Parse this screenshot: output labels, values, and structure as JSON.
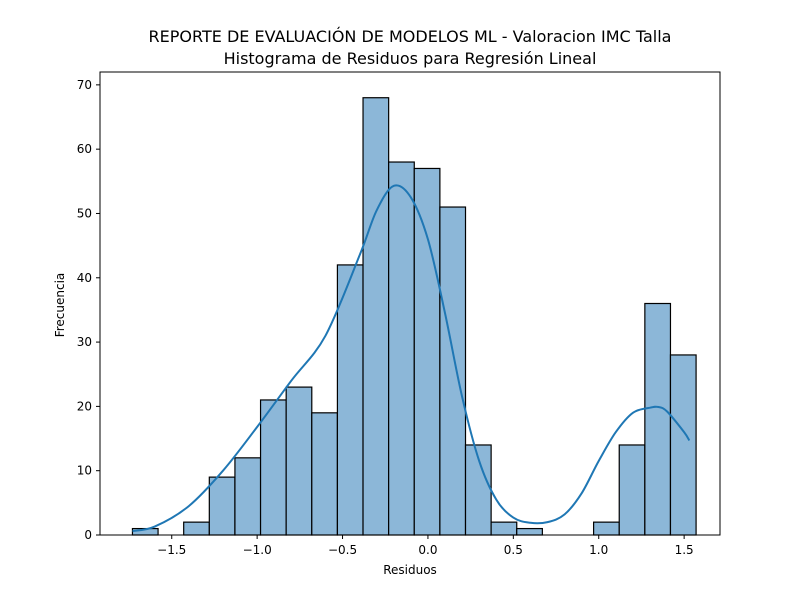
{
  "chart_data": {
    "type": "bar",
    "title": "REPORTE DE EVALUACIÓN DE MODELOS ML - Valoracion IMC Talla",
    "subtitle": "Histograma de Residuos para Regresión Lineal",
    "xlabel": "Residuos",
    "ylabel": "Frecuencia",
    "xlim": [
      -1.92,
      1.71
    ],
    "ylim": [
      0,
      72
    ],
    "xticks": [
      -1.5,
      -1.0,
      -0.5,
      0.0,
      0.5,
      1.0,
      1.5
    ],
    "xtick_labels": [
      "−1.5",
      "−1.0",
      "−0.5",
      "0.0",
      "0.5",
      "1.0",
      "1.5"
    ],
    "yticks": [
      0,
      10,
      20,
      30,
      40,
      50,
      60,
      70
    ],
    "ytick_labels": [
      "0",
      "10",
      "20",
      "30",
      "40",
      "50",
      "60",
      "70"
    ],
    "grid": false,
    "bin_edges": [
      -1.73,
      -1.58,
      -1.43,
      -1.28,
      -1.13,
      -0.98,
      -0.83,
      -0.68,
      -0.53,
      -0.38,
      -0.23,
      -0.08,
      0.07,
      0.22,
      0.37,
      0.52,
      0.67,
      0.82,
      0.97,
      1.12,
      1.27,
      1.42,
      1.57
    ],
    "counts": [
      1,
      0,
      2,
      9,
      12,
      21,
      23,
      19,
      42,
      68,
      58,
      57,
      51,
      14,
      2,
      1,
      0,
      0,
      2,
      14,
      36,
      28
    ],
    "kde": {
      "x": [
        -1.73,
        -1.6,
        -1.4,
        -1.2,
        -1.0,
        -0.8,
        -0.6,
        -0.4,
        -0.3,
        -0.2,
        -0.1,
        0.0,
        0.1,
        0.2,
        0.3,
        0.4,
        0.5,
        0.6,
        0.7,
        0.8,
        0.9,
        1.0,
        1.1,
        1.2,
        1.3,
        1.35,
        1.4,
        1.5,
        1.53
      ],
      "y": [
        0.6,
        1.3,
        4.5,
        10.0,
        16.8,
        24.0,
        31.0,
        43.5,
        50.5,
        54.3,
        52.5,
        46.0,
        34.5,
        21.5,
        11.5,
        5.5,
        2.7,
        1.9,
        2.0,
        3.2,
        6.5,
        11.5,
        16.0,
        19.0,
        19.8,
        19.9,
        19.2,
        16.0,
        14.7
      ]
    },
    "colors": {
      "bar_fill": "#8cb7d8",
      "bar_edge": "#000000",
      "kde_line": "#1f77b4"
    }
  }
}
